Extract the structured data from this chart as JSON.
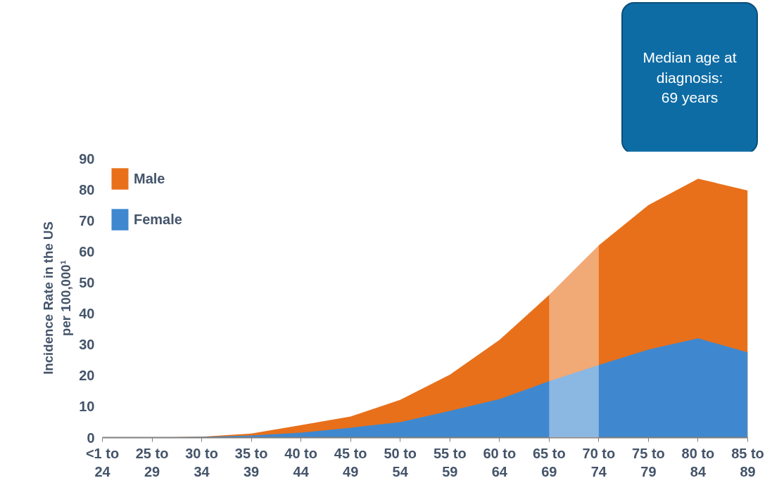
{
  "chart_data": {
    "type": "area",
    "categories": [
      "<1 to\n24",
      "25 to\n29",
      "30 to\n34",
      "35 to\n39",
      "40 to\n44",
      "45 to\n49",
      "50 to\n54",
      "55 to\n59",
      "60 to\n64",
      "65 to\n69",
      "70 to\n74",
      "75 to\n79",
      "80 to\n84",
      "85 to\n89"
    ],
    "series": [
      {
        "name": "Male",
        "color": "#e8701a",
        "values": [
          0,
          0,
          0.3,
          1.3,
          4,
          6.8,
          12.2,
          20.3,
          31.5,
          46,
          62,
          75,
          83.5,
          79.7
        ]
      },
      {
        "name": "Female",
        "color": "#3f88d0",
        "values": [
          0,
          0,
          0.2,
          0.7,
          1.6,
          3.2,
          5,
          8.6,
          12.4,
          18.2,
          23.4,
          28.4,
          32,
          27.5
        ]
      }
    ],
    "ylabel": "Incidence Rate in the US\nper 100,000¹",
    "ylim": [
      0,
      90
    ],
    "yticks": [
      0,
      10,
      20,
      30,
      40,
      50,
      60,
      70,
      80,
      90
    ],
    "bands": [
      {
        "axis": "x",
        "from": "65 to\n69",
        "to": "70 to\n74",
        "color": "#ffffff"
      }
    ],
    "annotations": [
      "Median age at\ndiagnosis:\n69 years"
    ],
    "legend": "top left",
    "grid": false
  }
}
